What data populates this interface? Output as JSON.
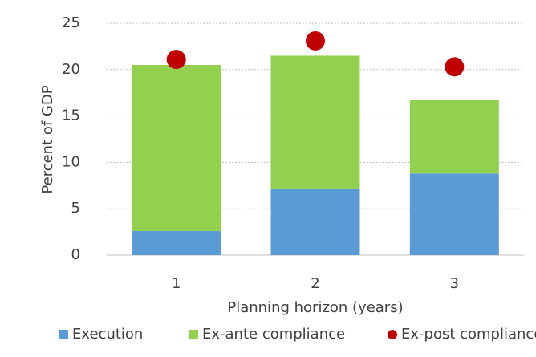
{
  "chart_data": {
    "type": "bar",
    "stacked": true,
    "xlabel": "Planning horizon (years)",
    "ylabel": "Percent of GDP",
    "categories": [
      "1",
      "2",
      "3"
    ],
    "series": [
      {
        "name": "Execution",
        "color": "#5b9bd5",
        "values": [
          2.6,
          7.2,
          8.8
        ]
      },
      {
        "name": "Ex-ante compliance",
        "color": "#92d050",
        "values": [
          17.9,
          14.3,
          7.9
        ]
      },
      {
        "name": "Ex-post compliance",
        "color": "#c00000",
        "type": "scatter",
        "values": [
          21.1,
          23.1,
          20.3
        ]
      }
    ],
    "ylim": [
      0,
      25
    ],
    "yticks": [
      0,
      5,
      10,
      15,
      20,
      25
    ],
    "grid": true,
    "legend": "bottom"
  }
}
